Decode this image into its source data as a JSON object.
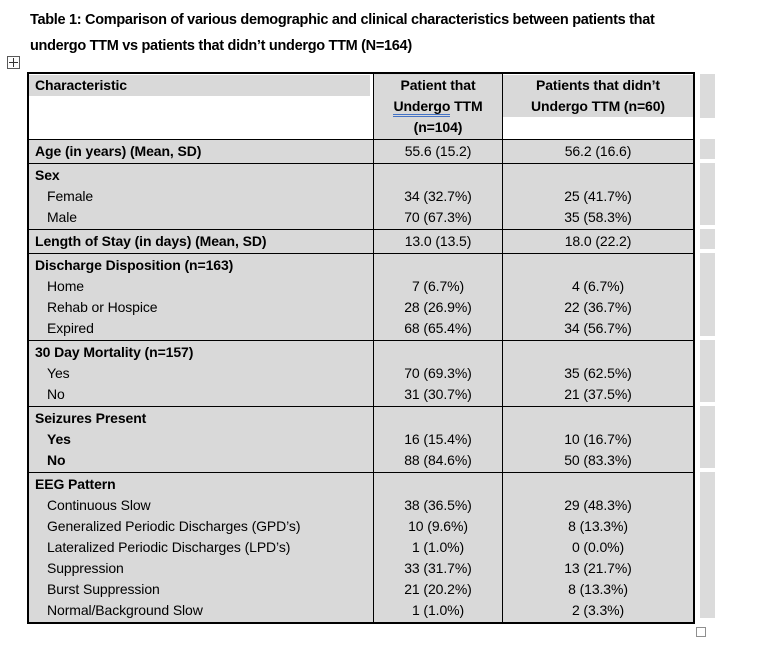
{
  "caption": {
    "line1": "Table 1: Comparison of various demographic and clinical characteristics between patients that",
    "line2": "undergo TTM vs patients that didn’t undergo TTM (N=164)"
  },
  "icons": {
    "move_handle": "table-move-cross",
    "resize_handle": "table-resize-square"
  },
  "colors": {
    "row_shading": "#d9d9d9",
    "strip_shading": "#dbdbdb",
    "table_border": "#000000",
    "grammar_underline": "#4472c4",
    "page_background": "#ffffff"
  },
  "table": {
    "header": {
      "col1": "Characteristic",
      "col2_lines": [
        {
          "text": "Patient that"
        },
        {
          "text": "Undergo TTM",
          "grammar_underline_word": "Undergo"
        },
        {
          "text": "(n=104)"
        }
      ],
      "col3_lines": [
        {
          "text": "Patients that didn’t"
        },
        {
          "text": "Undergo TTM (n=60)"
        }
      ]
    },
    "sections": [
      {
        "rows": [
          {
            "label": "Age (in years) (Mean, SD)",
            "bold": true,
            "indent": false,
            "v1": "55.6 (15.2)",
            "v2": "56.2 (16.6)"
          }
        ]
      },
      {
        "rows": [
          {
            "label": "Sex",
            "bold": true,
            "indent": false,
            "v1": "",
            "v2": ""
          },
          {
            "label": "Female",
            "bold": false,
            "indent": true,
            "v1": "34 (32.7%)",
            "v2": "25 (41.7%)"
          },
          {
            "label": "Male",
            "bold": false,
            "indent": true,
            "v1": "70 (67.3%)",
            "v2": "35 (58.3%)"
          }
        ]
      },
      {
        "rows": [
          {
            "label": "Length of Stay (in days) (Mean, SD)",
            "bold": true,
            "indent": false,
            "v1": "13.0 (13.5)",
            "v2": "18.0 (22.2)"
          }
        ]
      },
      {
        "rows": [
          {
            "label": "Discharge Disposition (n=163)",
            "bold": true,
            "indent": false,
            "v1": "",
            "v2": ""
          },
          {
            "label": "Home",
            "bold": false,
            "indent": true,
            "v1": "7 (6.7%)",
            "v2": "4 (6.7%)"
          },
          {
            "label": "Rehab or Hospice",
            "bold": false,
            "indent": true,
            "v1": "28 (26.9%)",
            "v2": "22 (36.7%)"
          },
          {
            "label": "Expired",
            "bold": false,
            "indent": true,
            "v1": "68 (65.4%)",
            "v2": "34 (56.7%)"
          }
        ]
      },
      {
        "rows": [
          {
            "label": "30 Day Mortality (n=157)",
            "bold": true,
            "indent": false,
            "v1": "",
            "v2": ""
          },
          {
            "label": "Yes",
            "bold": false,
            "indent": true,
            "v1": "70 (69.3%)",
            "v2": "35 (62.5%)"
          },
          {
            "label": "No",
            "bold": false,
            "indent": true,
            "v1": "31 (30.7%)",
            "v2": "21 (37.5%)"
          }
        ]
      },
      {
        "rows": [
          {
            "label": "Seizures Present",
            "bold": true,
            "indent": false,
            "v1": "",
            "v2": ""
          },
          {
            "label": "Yes",
            "bold": true,
            "indent": true,
            "v1": "16 (15.4%)",
            "v2": "10 (16.7%)"
          },
          {
            "label": "No",
            "bold": true,
            "indent": true,
            "v1": "88 (84.6%)",
            "v2": "50 (83.3%)"
          }
        ]
      },
      {
        "rows": [
          {
            "label": "EEG Pattern",
            "bold": true,
            "indent": false,
            "v1": "",
            "v2": ""
          },
          {
            "label": "Continuous Slow",
            "bold": false,
            "indent": true,
            "v1": "38 (36.5%)",
            "v2": "29 (48.3%)"
          },
          {
            "label": "Generalized Periodic Discharges (GPD’s)",
            "bold": false,
            "indent": true,
            "v1": "10 (9.6%)",
            "v2": "8 (13.3%)"
          },
          {
            "label": "Lateralized Periodic Discharges (LPD’s)",
            "bold": false,
            "indent": true,
            "v1": "1 (1.0%)",
            "v2": "0 (0.0%)"
          },
          {
            "label": "Suppression",
            "bold": false,
            "indent": true,
            "v1": "33 (31.7%)",
            "v2": "13 (21.7%)"
          },
          {
            "label": "Burst Suppression",
            "bold": false,
            "indent": true,
            "v1": "21 (20.2%)",
            "v2": "8 (13.3%)"
          },
          {
            "label": "Normal/Background Slow",
            "bold": false,
            "indent": true,
            "v1": "1 (1.0%)",
            "v2": "2 (3.3%)"
          }
        ]
      }
    ]
  }
}
